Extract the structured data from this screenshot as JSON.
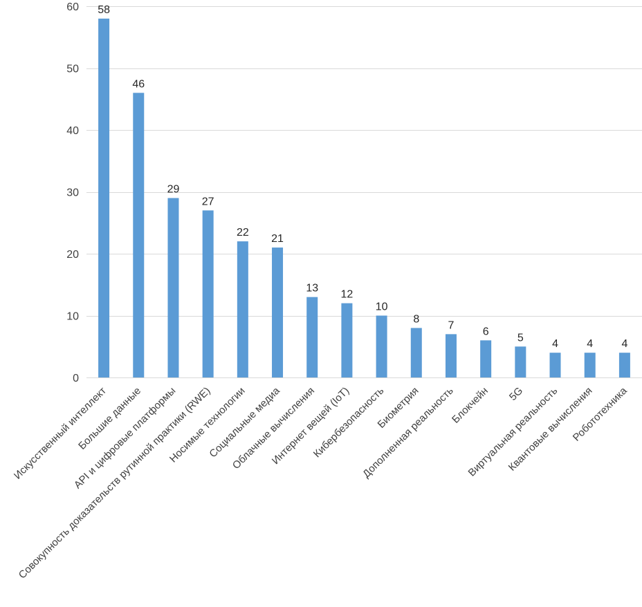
{
  "chart_data": {
    "type": "bar",
    "title": "",
    "xlabel": "",
    "ylabel": "",
    "ylim": [
      0,
      60
    ],
    "yticks": [
      0,
      10,
      20,
      30,
      40,
      50,
      60
    ],
    "grid": true,
    "legend": "none",
    "bar_color": "#5b9bd5",
    "categories": [
      "Искусственный интеллект",
      "Большие данные",
      "API и цифровые платформы",
      "Совокупность доказательств рутинной практики (RWE)",
      "Носимые технологии",
      "Социальные медиа",
      "Облачные вычисления",
      "Интернет вещей (IoT)",
      "Кибербезопасность",
      "Биометрия",
      "Дополненная реальность",
      "Блокчейн",
      "5G",
      "Виртуальная реальность",
      "Квантовые вычисления",
      "Робототехника"
    ],
    "values": [
      58,
      46,
      29,
      27,
      22,
      21,
      13,
      12,
      10,
      8,
      7,
      6,
      5,
      4,
      4,
      4
    ]
  }
}
